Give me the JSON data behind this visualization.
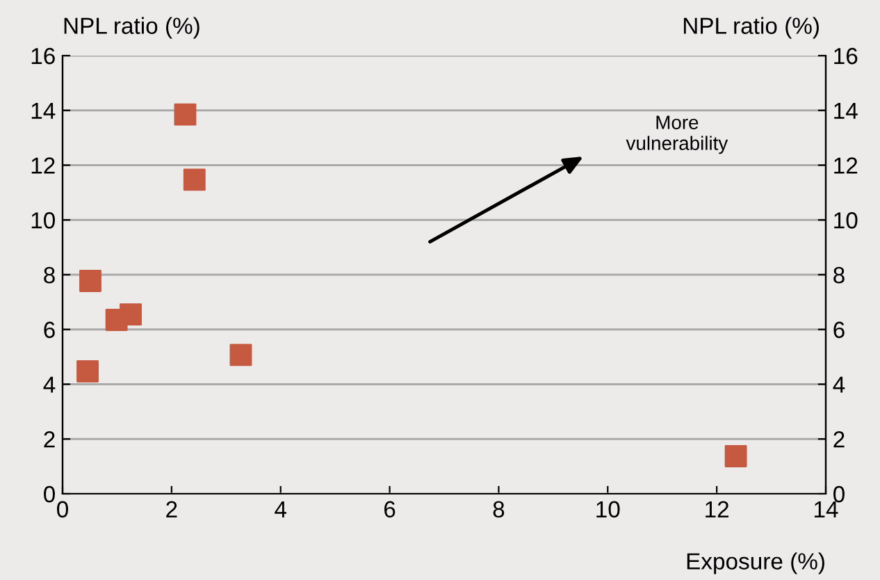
{
  "chart_data": {
    "type": "scatter",
    "xlabel": "Exposure (%)",
    "ylabel": "NPL ratio (%)",
    "y2label": "NPL ratio (%)",
    "x": [
      2.25,
      2.42,
      0.51,
      0.99,
      1.25,
      0.46,
      3.27,
      12.35
    ],
    "series": [
      {
        "color": "#c55a40",
        "values": [
          13.85,
          11.47,
          7.77,
          6.35,
          6.55,
          4.47,
          5.07,
          1.37
        ]
      }
    ],
    "marker": "square",
    "xlim": [
      0,
      14
    ],
    "xticks": [
      0,
      2,
      4,
      6,
      8,
      10,
      12,
      14
    ],
    "ylim": [
      0,
      16
    ],
    "yticks": [
      0,
      2,
      4,
      6,
      8,
      10,
      12,
      14,
      16
    ],
    "y2lim": [
      0,
      16
    ],
    "y2ticks": [
      0,
      2,
      4,
      6,
      8,
      10,
      12,
      14,
      16
    ],
    "annotations": [
      "More\nvulnerability"
    ],
    "grid": "y",
    "legend": false
  }
}
